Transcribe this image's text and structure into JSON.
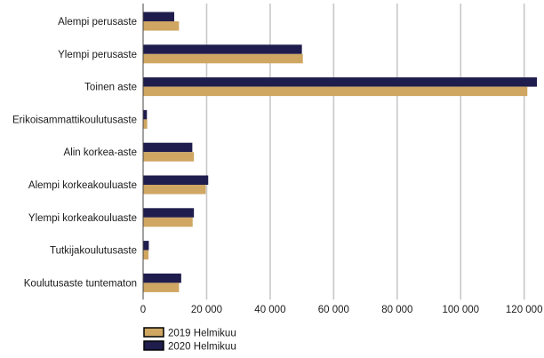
{
  "chart_data": {
    "type": "bar",
    "orientation": "horizontal",
    "categories": [
      "Alempi perusaste",
      "Ylempi perusaste",
      "Toinen aste",
      "Erikoisammattikoulutusaste",
      "Alin korkea-aste",
      "Alempi korkeakouluaste",
      "Ylempi korkeakouluaste",
      "Tutkijakoulutusaste",
      "Koulutusaste tuntematon"
    ],
    "series": [
      {
        "name": "2020 Helmikuu",
        "color": "#1f1d4d",
        "values": [
          9800,
          50000,
          124000,
          1200,
          15500,
          20500,
          16000,
          1800,
          12000
        ]
      },
      {
        "name": "2019 Helmikuu",
        "color": "#cfa662",
        "values": [
          11300,
          50300,
          121000,
          1300,
          16000,
          19700,
          15600,
          1700,
          11300
        ]
      }
    ],
    "x_ticks": [
      "0",
      "20 000",
      "40 000",
      "60 000",
      "80 000",
      "100 000",
      "120 000"
    ],
    "xlim": [
      0,
      124000
    ],
    "grid": "vertical",
    "legend_position": "bottom-left",
    "legend_order": [
      "2019 Helmikuu",
      "2020 Helmikuu"
    ],
    "title": "",
    "xlabel": "",
    "ylabel": ""
  }
}
